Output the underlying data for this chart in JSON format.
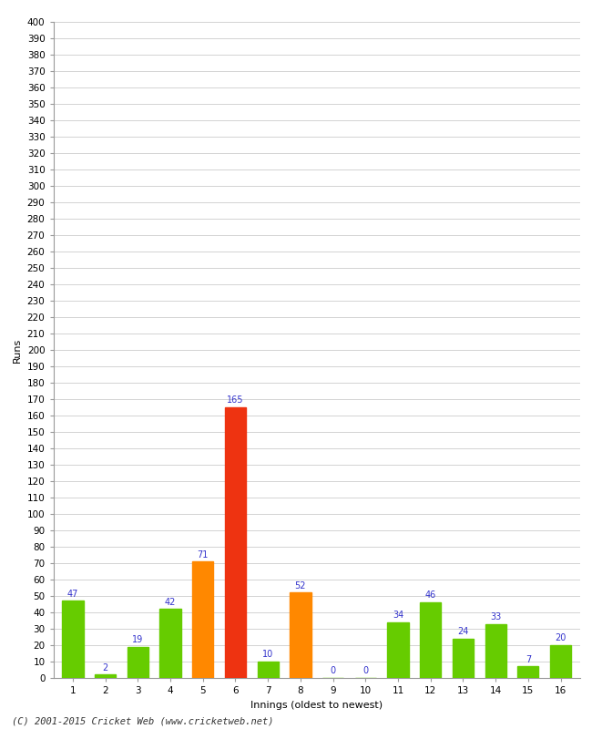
{
  "xlabel": "Innings (oldest to newest)",
  "ylabel": "Runs",
  "categories": [
    1,
    2,
    3,
    4,
    5,
    6,
    7,
    8,
    9,
    10,
    11,
    12,
    13,
    14,
    15,
    16
  ],
  "values": [
    47,
    2,
    19,
    42,
    71,
    165,
    10,
    52,
    0,
    0,
    34,
    46,
    24,
    33,
    7,
    20
  ],
  "bar_colors": [
    "#66cc00",
    "#66cc00",
    "#66cc00",
    "#66cc00",
    "#ff8800",
    "#ee3311",
    "#66cc00",
    "#ff8800",
    "#66cc00",
    "#66cc00",
    "#66cc00",
    "#66cc00",
    "#66cc00",
    "#66cc00",
    "#66cc00",
    "#66cc00"
  ],
  "ylim": [
    0,
    400
  ],
  "ytick_step": 10,
  "label_color": "#3333cc",
  "label_fontsize": 7,
  "axis_label_fontsize": 8,
  "title_fontsize": 10,
  "tick_fontsize": 7.5,
  "background_color": "#ffffff",
  "grid_color": "#cccccc",
  "footer": "(C) 2001-2015 Cricket Web (www.cricketweb.net)"
}
